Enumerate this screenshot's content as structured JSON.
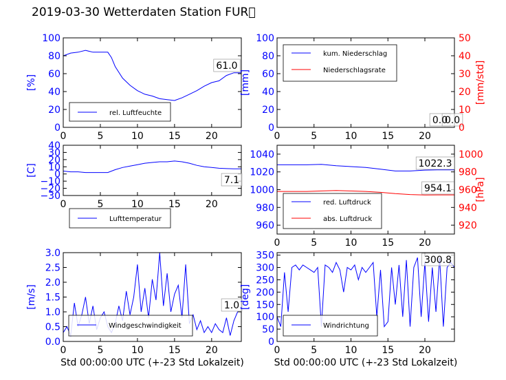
{
  "page_title": "2019-03-30 Wetterdaten Station FUR\u0000",
  "colors": {
    "primary": "#0000ff",
    "secondary": "#ff0000",
    "axes": "#000000"
  },
  "chart_data": [
    {
      "type": "line",
      "ylabel": "[%]",
      "xlim": [
        0,
        24
      ],
      "ylim": [
        0,
        100
      ],
      "xticks": [
        "0",
        "5",
        "10",
        "15",
        "20"
      ],
      "yticks": [
        "0",
        "20",
        "40",
        "60",
        "80",
        "100"
      ],
      "legend": [
        "rel. Luftfeuchte"
      ],
      "legend_position": "lower-left",
      "annotation": "61.0",
      "series": [
        {
          "name": "rel. Luftfeuchte",
          "color": "#0000ff",
          "x": [
            0,
            1,
            2,
            3,
            4,
            5,
            6,
            6.5,
            7,
            8,
            9,
            10,
            11,
            12,
            13,
            14,
            15,
            16,
            17,
            18,
            19,
            20,
            21,
            22,
            23,
            24
          ],
          "y": [
            80,
            83,
            84,
            86,
            84,
            84,
            84,
            78,
            68,
            55,
            47,
            41,
            37,
            35,
            32,
            31,
            30,
            33,
            37,
            41,
            46,
            50,
            52,
            58,
            61,
            61
          ]
        }
      ]
    },
    {
      "type": "line",
      "ylabel": "[mm]",
      "ylabel_right": "[mm/std]",
      "xlim": [
        0,
        24
      ],
      "ylim": [
        0,
        100
      ],
      "ylim_right": [
        0,
        50
      ],
      "xticks": [
        "0",
        "5",
        "10",
        "15",
        "20"
      ],
      "yticks": [
        "0",
        "20",
        "40",
        "60",
        "80",
        "100"
      ],
      "yticks_right": [
        "0",
        "10",
        "20",
        "30",
        "40",
        "50"
      ],
      "legend": [
        "kum. Niederschlag",
        "Niederschlagsrate"
      ],
      "legend_position": "top-left",
      "annotation": "0.0",
      "annotation_2": "0.0",
      "series": [
        {
          "name": "kum. Niederschlag",
          "color": "#0000ff",
          "axis": "left",
          "x": [
            0,
            24
          ],
          "y": [
            0,
            0
          ]
        },
        {
          "name": "Niederschlagsrate",
          "color": "#ff0000",
          "axis": "right",
          "x": [
            0,
            24
          ],
          "y": [
            0,
            0
          ]
        }
      ]
    },
    {
      "type": "line",
      "ylabel": "[C]",
      "xlim": [
        0,
        24
      ],
      "ylim": [
        -30,
        40
      ],
      "xticks": [
        "0",
        "5",
        "10",
        "15",
        "20"
      ],
      "yticks": [
        "−30",
        "−20",
        "−10",
        "0",
        "10",
        "20",
        "30",
        "40"
      ],
      "legend": [
        "Lufttemperatur"
      ],
      "legend_position": "lower-left",
      "annotation": "7.1",
      "series": [
        {
          "name": "Lufttemperatur",
          "color": "#0000ff",
          "x": [
            0,
            1,
            2,
            3,
            4,
            5,
            6,
            7,
            8,
            9,
            10,
            11,
            12,
            13,
            14,
            15,
            16,
            17,
            18,
            19,
            20,
            21,
            22,
            23,
            24
          ],
          "y": [
            4,
            3,
            3,
            2,
            2,
            2,
            2,
            6,
            9,
            11,
            13,
            15,
            16,
            17,
            17,
            18,
            17,
            15,
            12,
            10,
            9,
            8,
            7.5,
            7.1,
            7.1
          ]
        }
      ]
    },
    {
      "type": "line",
      "ylabel_right": "[hPa]",
      "xlim": [
        0,
        24
      ],
      "ylim": [
        950,
        1050
      ],
      "ylim_right": [
        910,
        1010
      ],
      "xticks": [
        "0",
        "5",
        "10",
        "15",
        "20"
      ],
      "yticks": [
        "960",
        "980",
        "1000",
        "1020",
        "1040"
      ],
      "yticks_right": [
        "920",
        "940",
        "960",
        "980",
        "1000"
      ],
      "legend": [
        "red. Luftdruck",
        "abs. Luftdruck"
      ],
      "legend_position": "lower-left",
      "annotation": "1022.3",
      "annotation_2": "954.1",
      "series": [
        {
          "name": "red. Luftdruck",
          "color": "#0000ff",
          "axis": "left",
          "x": [
            0,
            2,
            4,
            6,
            8,
            10,
            12,
            14,
            16,
            18,
            20,
            22,
            24
          ],
          "y": [
            1028,
            1028,
            1028,
            1028.5,
            1027,
            1026,
            1025,
            1023,
            1021,
            1021,
            1022,
            1022.3,
            1022.3
          ]
        },
        {
          "name": "abs. Luftdruck",
          "color": "#ff0000",
          "axis": "right",
          "x": [
            0,
            2,
            4,
            6,
            8,
            10,
            12,
            14,
            16,
            18,
            20,
            22,
            24
          ],
          "y": [
            958,
            958,
            958,
            958.5,
            959,
            958.5,
            958,
            957,
            955.5,
            954.5,
            954,
            954.1,
            954.1
          ]
        }
      ]
    },
    {
      "type": "line",
      "ylabel": "[m/s]",
      "xlabel": "Std 00:00:00 UTC (+-23 Std Lokalzeit)",
      "xlim": [
        0,
        24
      ],
      "ylim": [
        0,
        3.0
      ],
      "xticks": [
        "0",
        "5",
        "10",
        "15",
        "20"
      ],
      "yticks": [
        "0.0",
        "0.5",
        "1.0",
        "1.5",
        "2.0",
        "2.5",
        "3.0"
      ],
      "legend": [
        "Windgeschwindigkeit"
      ],
      "legend_position": "lower-center",
      "annotation": "1.0",
      "series": [
        {
          "name": "Windgeschwindigkeit",
          "color": "#0000ff",
          "x": [
            0,
            0.5,
            1,
            1.5,
            2,
            2.5,
            3,
            3.5,
            4,
            4.5,
            5,
            5.5,
            6,
            6.5,
            7,
            7.5,
            8,
            8.5,
            9,
            9.5,
            10,
            10.5,
            11,
            11.5,
            12,
            12.5,
            13,
            13.5,
            14,
            14.5,
            15,
            15.5,
            16,
            16.5,
            17,
            17.5,
            18,
            18.5,
            19,
            19.5,
            20,
            20.5,
            21,
            21.5,
            22,
            22.5,
            23,
            23.5,
            24
          ],
          "y": [
            0.3,
            0.5,
            0.2,
            1.3,
            0.5,
            0.9,
            1.5,
            0.6,
            1.2,
            0.4,
            0.8,
            1.0,
            0.5,
            0.3,
            0.6,
            1.2,
            0.7,
            1.7,
            0.9,
            1.5,
            2.6,
            1.0,
            1.8,
            0.8,
            2.1,
            1.4,
            3.0,
            1.2,
            2.3,
            1.0,
            1.6,
            1.9,
            0.8,
            2.6,
            0.6,
            0.9,
            0.4,
            0.7,
            0.3,
            0.5,
            0.3,
            0.6,
            0.4,
            0.3,
            0.8,
            0.2,
            0.7,
            1.0,
            1.0
          ]
        }
      ]
    },
    {
      "type": "line",
      "ylabel": "[deg]",
      "xlabel": "Std 00:00:00 UTC (+-23 Std Lokalzeit)",
      "xlim": [
        0,
        24
      ],
      "ylim": [
        0,
        360
      ],
      "xticks": [
        "0",
        "5",
        "10",
        "15",
        "20"
      ],
      "yticks": [
        "0",
        "50",
        "100",
        "150",
        "200",
        "250",
        "300",
        "350"
      ],
      "legend": [
        "Windrichtung"
      ],
      "legend_position": "lower-left",
      "annotation": "300.8",
      "series": [
        {
          "name": "Windrichtung",
          "color": "#0000ff",
          "x": [
            0,
            0.5,
            1,
            1.5,
            2,
            2.5,
            3,
            3.5,
            4,
            4.5,
            5,
            5.5,
            6,
            6.5,
            7,
            7.5,
            8,
            8.5,
            9,
            9.5,
            10,
            10.5,
            11,
            11.5,
            12,
            12.5,
            13,
            13.5,
            14,
            14.5,
            15,
            15.5,
            16,
            16.5,
            17,
            17.5,
            18,
            18.5,
            19,
            19.5,
            20,
            20.5,
            21,
            21.5,
            22,
            22.5,
            23,
            23.5,
            24
          ],
          "y": [
            100,
            60,
            280,
            120,
            300,
            310,
            290,
            310,
            300,
            290,
            280,
            300,
            60,
            310,
            300,
            280,
            320,
            290,
            200,
            300,
            290,
            310,
            250,
            300,
            280,
            300,
            320,
            100,
            290,
            60,
            80,
            300,
            150,
            310,
            100,
            330,
            60,
            300,
            340,
            100,
            320,
            80,
            300,
            120,
            340,
            60,
            300,
            320,
            300
          ]
        }
      ]
    }
  ]
}
